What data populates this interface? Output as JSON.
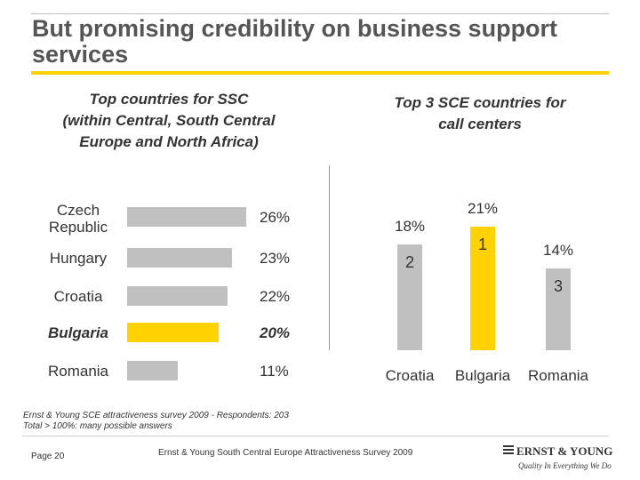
{
  "title": "But promising credibility on business support services",
  "left_chart": {
    "subtitle_lines": [
      "Top countries for SSC",
      "(within Central, South Central",
      "Europe and North Africa)"
    ]
  },
  "right_chart": {
    "subtitle_lines": [
      "Top 3 SCE countries for",
      "call centers"
    ]
  },
  "chart_data": [
    {
      "type": "bar",
      "orientation": "horizontal",
      "title": "Top countries for SSC (within Central, South Central Europe and North Africa)",
      "categories": [
        "Czech Republic",
        "Hungary",
        "Croatia",
        "Bulgaria",
        "Romania"
      ],
      "values": [
        26,
        23,
        22,
        20,
        11
      ],
      "value_labels": [
        "26%",
        "23%",
        "22%",
        "20%",
        "11%"
      ],
      "highlight": "Bulgaria",
      "colors": {
        "default": "#c0c0c0",
        "highlight": "#ffd200"
      }
    },
    {
      "type": "bar",
      "orientation": "vertical",
      "title": "Top 3 SCE countries for call centers",
      "categories": [
        "Croatia",
        "Bulgaria",
        "Romania"
      ],
      "values": [
        18,
        21,
        14
      ],
      "value_labels": [
        "18%",
        "21%",
        "14%"
      ],
      "ranks": [
        "2",
        "1",
        "3"
      ],
      "highlight": "Bulgaria",
      "colors": {
        "default": "#c0c0c0",
        "highlight": "#ffd200"
      }
    }
  ],
  "footnote": {
    "line1": "Ernst & Young SCE attractiveness survey 2009 - Respondents: 203",
    "line2": "Total > 100%: many possible answers"
  },
  "footer": {
    "page": "Page 20",
    "source": "Ernst & Young South Central Europe Attractiveness Survey 2009",
    "logo_name": "ERNST & YOUNG",
    "logo_tagline": "Quality In Everything We Do"
  }
}
